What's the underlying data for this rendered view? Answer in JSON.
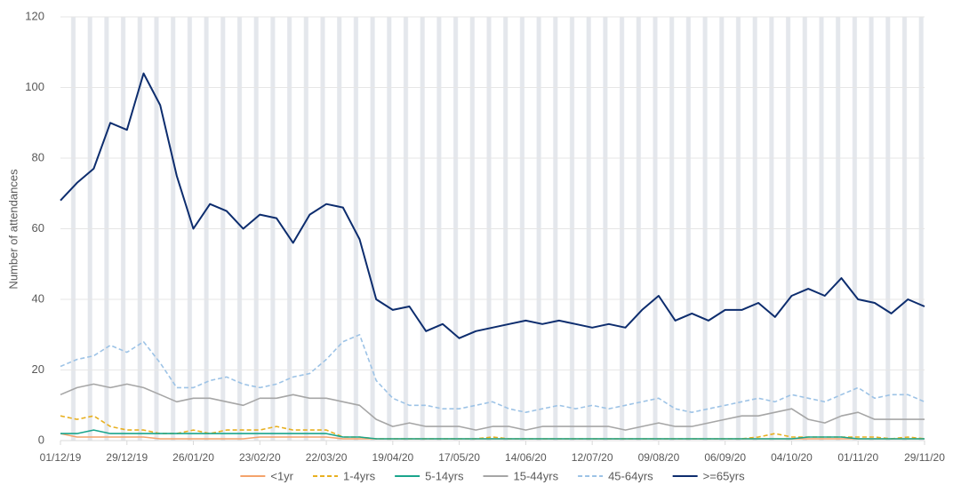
{
  "chart_data": {
    "type": "line",
    "y_label": "Number of attendances",
    "x": [
      "01/12/19",
      "08/12/19",
      "15/12/19",
      "22/12/19",
      "29/12/19",
      "05/01/20",
      "12/01/20",
      "19/01/20",
      "26/01/20",
      "02/02/20",
      "09/02/20",
      "16/02/20",
      "23/02/20",
      "01/03/20",
      "08/03/20",
      "15/03/20",
      "22/03/20",
      "29/03/20",
      "05/04/20",
      "12/04/20",
      "19/04/20",
      "26/04/20",
      "03/05/20",
      "10/05/20",
      "17/05/20",
      "24/05/20",
      "31/05/20",
      "07/06/20",
      "14/06/20",
      "21/06/20",
      "28/06/20",
      "05/07/20",
      "12/07/20",
      "19/07/20",
      "26/07/20",
      "02/08/20",
      "09/08/20",
      "16/08/20",
      "23/08/20",
      "30/08/20",
      "06/09/20",
      "13/09/20",
      "20/09/20",
      "27/09/20",
      "04/10/20",
      "11/10/20",
      "18/10/20",
      "25/10/20",
      "01/11/20",
      "08/11/20",
      "15/11/20",
      "22/11/20",
      "29/11/20"
    ],
    "xlim": [
      "01/12/19",
      "29/11/20"
    ],
    "xticks": [
      "01/12/19",
      "29/12/19",
      "26/01/20",
      "23/02/20",
      "22/03/20",
      "19/04/20",
      "17/05/20",
      "14/06/20",
      "12/07/20",
      "09/08/20",
      "06/09/20",
      "04/10/20",
      "01/11/20",
      "29/11/20"
    ],
    "ylim": [
      0,
      120
    ],
    "yticks": [
      0,
      20,
      40,
      60,
      80,
      100,
      120
    ],
    "grid": true,
    "series": [
      {
        "name": "<1yr",
        "color": "#f4a36b",
        "dashed": false,
        "values": [
          2,
          1,
          1,
          1,
          1,
          1,
          0.5,
          0.5,
          0.5,
          0.5,
          0.5,
          0.5,
          1,
          1,
          1,
          1,
          1,
          0.5,
          0.5,
          0.5,
          0.5,
          0.5,
          0.5,
          0.5,
          0.5,
          0.5,
          0.5,
          0.5,
          0.5,
          0.5,
          0.5,
          0.5,
          0.5,
          0.5,
          0.5,
          0.5,
          0.5,
          0.5,
          0.5,
          0.5,
          0.5,
          0.5,
          0.5,
          0.5,
          0.5,
          0.5,
          0.5,
          0.5,
          0.5,
          0.5,
          0.5,
          0.5,
          0.5
        ]
      },
      {
        "name": "1-4yrs",
        "color": "#e8b020",
        "dashed": true,
        "values": [
          7,
          6,
          7,
          4,
          3,
          3,
          2,
          2,
          3,
          2,
          3,
          3,
          3,
          4,
          3,
          3,
          3,
          1,
          1,
          0.5,
          0.5,
          0.5,
          0.5,
          0.5,
          0.5,
          0.5,
          1,
          0.5,
          0.5,
          0.5,
          0.5,
          0.5,
          0.5,
          0.5,
          0.5,
          0.5,
          0.5,
          0.5,
          0.5,
          0.5,
          0.5,
          0.5,
          1,
          2,
          1,
          1,
          1,
          1,
          1,
          1,
          0.5,
          1,
          0.5
        ]
      },
      {
        "name": "5-14yrs",
        "color": "#1aa58c",
        "dashed": false,
        "values": [
          2,
          2,
          3,
          2,
          2,
          2,
          2,
          2,
          2,
          2,
          2,
          2,
          2,
          2,
          2,
          2,
          2,
          1,
          1,
          0.5,
          0.5,
          0.5,
          0.5,
          0.5,
          0.5,
          0.5,
          0.5,
          0.5,
          0.5,
          0.5,
          0.5,
          0.5,
          0.5,
          0.5,
          0.5,
          0.5,
          0.5,
          0.5,
          0.5,
          0.5,
          0.5,
          0.5,
          0.5,
          0.5,
          0.5,
          1,
          1,
          1,
          0.5,
          0.5,
          0.5,
          0.5,
          0.5
        ]
      },
      {
        "name": "15-44yrs",
        "color": "#a6a6a6",
        "dashed": false,
        "values": [
          13,
          15,
          16,
          15,
          16,
          15,
          13,
          11,
          12,
          12,
          11,
          10,
          12,
          12,
          13,
          12,
          12,
          11,
          10,
          6,
          4,
          5,
          4,
          4,
          4,
          3,
          4,
          4,
          3,
          4,
          4,
          4,
          4,
          4,
          3,
          4,
          5,
          4,
          4,
          5,
          6,
          7,
          7,
          8,
          9,
          6,
          5,
          7,
          8,
          6,
          6,
          6,
          6
        ]
      },
      {
        "name": "45-64yrs",
        "color": "#9dc3e6",
        "dashed": true,
        "values": [
          21,
          23,
          24,
          27,
          25,
          28,
          22,
          15,
          15,
          17,
          18,
          16,
          15,
          16,
          18,
          19,
          23,
          28,
          30,
          17,
          12,
          10,
          10,
          9,
          9,
          10,
          11,
          9,
          8,
          9,
          10,
          9,
          10,
          9,
          10,
          11,
          12,
          9,
          8,
          9,
          10,
          11,
          12,
          11,
          13,
          12,
          11,
          13,
          15,
          12,
          13,
          13,
          11
        ]
      },
      {
        "name": ">=65yrs",
        "color": "#0d2d6e",
        "dashed": false,
        "values": [
          68,
          73,
          77,
          90,
          88,
          104,
          95,
          75,
          60,
          67,
          65,
          60,
          64,
          63,
          56,
          64,
          67,
          66,
          57,
          40,
          37,
          38,
          31,
          33,
          29,
          31,
          32,
          33,
          34,
          33,
          34,
          33,
          32,
          33,
          32,
          37,
          41,
          34,
          36,
          34,
          37,
          37,
          39,
          35,
          41,
          43,
          41,
          46,
          40,
          39,
          36,
          40,
          38
        ]
      }
    ]
  }
}
